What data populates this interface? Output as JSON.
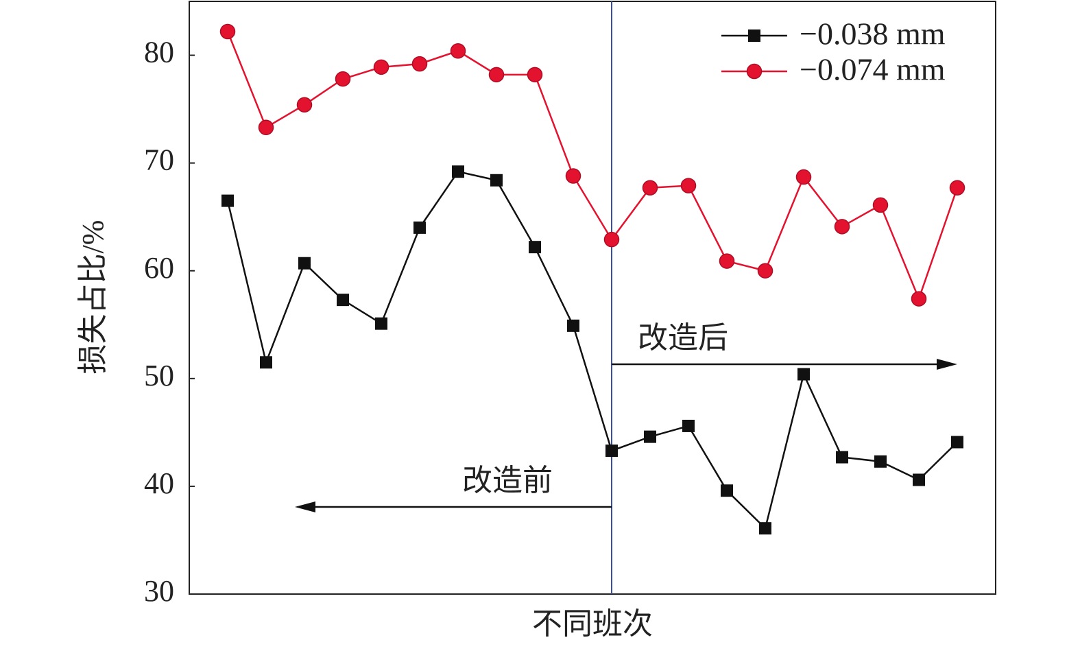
{
  "chart_data": {
    "type": "line",
    "y_label": "损失占比/%",
    "x_label": "不同班次",
    "categories": [
      null,
      null,
      null,
      null,
      null,
      null,
      null,
      null,
      null,
      null,
      null,
      null,
      null,
      null,
      null,
      null,
      null,
      null,
      null,
      null
    ],
    "series": [
      {
        "name": "−0.038 mm",
        "color": "#111111",
        "marker": "square",
        "values": [
          66.5,
          51.5,
          60.7,
          57.3,
          55.1,
          64.0,
          69.2,
          68.4,
          62.2,
          54.9,
          43.3,
          44.6,
          45.6,
          39.6,
          36.1,
          50.4,
          42.7,
          42.3,
          40.6,
          44.1
        ]
      },
      {
        "name": "−0.074 mm",
        "color": "#e3122f",
        "marker": "circle",
        "values": [
          82.2,
          73.3,
          75.4,
          77.8,
          78.9,
          79.2,
          80.4,
          78.2,
          78.2,
          68.8,
          62.9,
          67.7,
          67.9,
          60.9,
          60.0,
          68.7,
          64.1,
          66.1,
          57.4,
          67.7
        ]
      }
    ],
    "ylim": [
      30,
      85
    ],
    "yticks": [
      30,
      40,
      50,
      60,
      70,
      80
    ],
    "legend": "upper right",
    "annotations": [
      {
        "text": "改造后"
      },
      {
        "text": "改造前"
      }
    ]
  }
}
